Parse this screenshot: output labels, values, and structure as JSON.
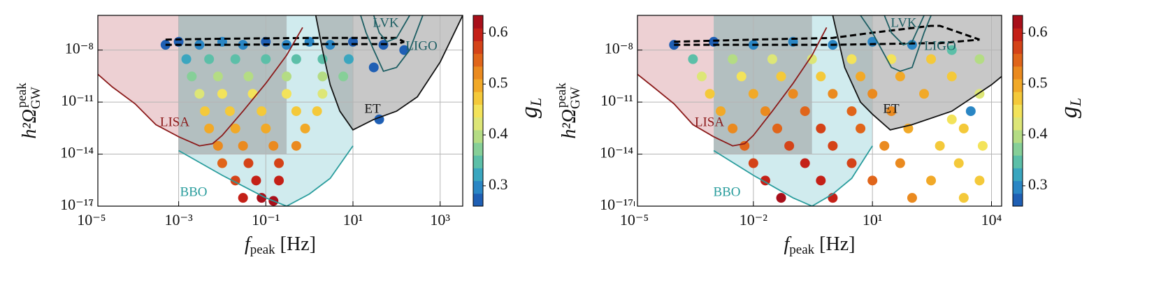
{
  "chart_data": [
    {
      "type": "scatter",
      "xlabel": {
        "base": "f",
        "sub": "peak",
        "rest": " [Hz]"
      },
      "ylabel": {
        "base": "h²Ω",
        "sub": "GW",
        "sup": "peak"
      },
      "xscale": "log",
      "yscale": "log",
      "grid": true,
      "xlim": [
        1.4e-05,
        3300
      ],
      "ylim": [
        1e-17,
        1e-06
      ],
      "xticks": [
        {
          "value": 1e-05,
          "label": "10⁻⁵"
        },
        {
          "value": 0.001,
          "label": "10⁻³"
        },
        {
          "value": 0.1,
          "label": "10⁻¹"
        },
        {
          "value": 10,
          "label": "10¹"
        },
        {
          "value": 1000,
          "label": "10³"
        }
      ],
      "yticks": [
        {
          "value": 1e-17,
          "label": "10⁻¹⁷"
        },
        {
          "value": 1e-14,
          "label": "10⁻¹⁴"
        },
        {
          "value": 1e-11,
          "label": "10⁻¹¹"
        },
        {
          "value": 1e-08,
          "label": "10⁻⁸"
        }
      ],
      "colorbar": {
        "label": {
          "base": "g",
          "sub": "L"
        },
        "lim": [
          0.26,
          0.635
        ],
        "ticks": [
          0.3,
          0.4,
          0.5,
          0.6
        ],
        "colors": [
          "#1f5fb4",
          "#2a86c4",
          "#3aa6bf",
          "#5cbfa8",
          "#86cf98",
          "#b4dc84",
          "#dde677",
          "#f3e35a",
          "#f4c93a",
          "#f1a928",
          "#ea8a1f",
          "#e0651a",
          "#d44318",
          "#c42017",
          "#a80f1a"
        ]
      },
      "regions": [
        {
          "color": "#dfa9ae",
          "x": [
            1.4e-05,
            0.001,
            0.001,
            0.0003,
            0.0001,
            3e-05,
            1.4e-05
          ],
          "y": [
            1e-06,
            1e-06,
            1e-13,
            5e-13,
            8e-12,
            7.5e-11,
            4e-10
          ]
        },
        {
          "color": "#a9dbe0",
          "x": [
            0.001,
            0.01,
            0.1,
            0.3,
            1,
            3,
            10,
            10,
            0.001
          ],
          "y": [
            1.6e-14,
            6e-16,
            3e-17,
            1e-17,
            5e-17,
            4e-16,
            3e-14,
            1e-06,
            1e-06
          ]
        },
        {
          "color": "#9a9a9a",
          "x": [
            0.001,
            0.3,
            0.3,
            0.001
          ],
          "y": [
            1e-06,
            1e-06,
            1e-14,
            1e-14
          ]
        },
        {
          "color": "#9a9a9a",
          "x": [
            1.4,
            2,
            3,
            5,
            10,
            30,
            100,
            300,
            1000,
            3300
          ],
          "y": [
            1e-06,
            1e-08,
            1e-10,
            3e-12,
            2.5e-13,
            1e-12,
            3e-12,
            2e-11,
            2e-09,
            1e-06
          ]
        }
      ],
      "curves": [
        {
          "name": "LISA",
          "color": "#8b1a1a",
          "x": [
            1.4e-05,
            3e-05,
            0.0001,
            0.0003,
            0.001,
            0.003,
            0.006,
            0.01,
            0.03,
            0.1,
            0.3,
            0.7
          ],
          "y": [
            4e-10,
            7.5e-11,
            8e-12,
            5e-13,
            1e-13,
            3e-14,
            4e-14,
            1.2e-13,
            3e-12,
            1.2e-10,
            5e-09,
            2e-07
          ]
        },
        {
          "name": "BBO",
          "color": "#2a9d9d",
          "x": [
            0.001,
            0.01,
            0.1,
            0.3,
            1,
            3,
            10
          ],
          "y": [
            1.6e-14,
            6e-16,
            3e-17,
            1e-17,
            5e-17,
            4e-16,
            3e-14
          ]
        },
        {
          "name": "ET",
          "color": "#111111",
          "x": [
            1.4,
            2,
            3,
            5,
            10,
            30,
            100,
            300,
            1000,
            3300
          ],
          "y": [
            1e-06,
            1e-08,
            1e-10,
            3e-12,
            2.5e-13,
            1e-12,
            3e-12,
            2e-11,
            2e-09,
            1e-06
          ]
        },
        {
          "name": "LIGO",
          "color": "#1d5e63",
          "x": [
            15,
            20,
            30,
            50,
            100,
            200,
            400
          ],
          "y": [
            1e-06,
            1e-07,
            1e-08,
            6e-10,
            1e-09,
            1e-08,
            1e-06
          ]
        },
        {
          "name": "LVK",
          "color": "#1d5e63",
          "x": [
            30,
            40,
            60,
            100,
            200
          ],
          "y": [
            1e-06,
            1e-07,
            3e-08,
            5e-08,
            1e-06
          ]
        }
      ],
      "band": {
        "x": [
          0.0005,
          0.01,
          1,
          100,
          150
        ],
        "upper": [
          4e-08,
          4.5e-08,
          5e-08,
          5e-08,
          3e-08
        ],
        "lower": [
          2e-08,
          2e-08,
          2.2e-08,
          2.2e-08,
          3e-08
        ]
      },
      "x": [
        0.0005,
        0.001,
        0.003,
        0.01,
        0.03,
        0.1,
        0.3,
        1,
        3,
        10,
        50,
        150,
        0.0015,
        0.005,
        0.02,
        0.1,
        0.5,
        2,
        8,
        0.002,
        0.008,
        0.04,
        0.3,
        2,
        6,
        0.003,
        0.01,
        0.05,
        0.3,
        2,
        0.004,
        0.015,
        0.08,
        0.5,
        1.5,
        0.005,
        0.02,
        0.1,
        0.8,
        0.008,
        0.03,
        0.15,
        0.5,
        0.01,
        0.04,
        0.2,
        0.02,
        0.06,
        0.2,
        0.03,
        0.08,
        0.15,
        30,
        40
      ],
      "values": [
        2e-08,
        3e-08,
        2e-08,
        3e-08,
        2e-08,
        3e-08,
        2e-08,
        3e-08,
        2e-08,
        3e-08,
        2e-08,
        1e-08,
        3e-09,
        3e-09,
        3e-09,
        3e-09,
        3e-09,
        3e-09,
        3e-09,
        3e-10,
        3e-10,
        3e-10,
        3e-10,
        3e-10,
        3e-10,
        3e-11,
        3e-11,
        3e-11,
        3e-11,
        3e-11,
        3e-12,
        3e-12,
        3e-12,
        3e-12,
        3e-12,
        3e-13,
        3e-13,
        3e-13,
        3e-13,
        3e-14,
        3e-14,
        3e-14,
        3e-14,
        3e-15,
        3e-15,
        3e-15,
        3e-16,
        3e-16,
        3e-16,
        3e-17,
        3e-17,
        2e-17,
        1e-09,
        1e-12
      ],
      "colorvalues": [
        0.27,
        0.28,
        0.3,
        0.29,
        0.3,
        0.28,
        0.3,
        0.29,
        0.3,
        0.28,
        0.27,
        0.27,
        0.33,
        0.34,
        0.35,
        0.34,
        0.35,
        0.34,
        0.33,
        0.38,
        0.4,
        0.41,
        0.4,
        0.39,
        0.38,
        0.43,
        0.44,
        0.45,
        0.44,
        0.43,
        0.46,
        0.47,
        0.47,
        0.46,
        0.46,
        0.49,
        0.5,
        0.5,
        0.49,
        0.52,
        0.53,
        0.53,
        0.52,
        0.55,
        0.56,
        0.56,
        0.58,
        0.59,
        0.59,
        0.61,
        0.62,
        0.62,
        0.27,
        0.27
      ]
    },
    {
      "type": "scatter",
      "xlabel": {
        "base": "f",
        "sub": "peak",
        "rest": " [Hz]"
      },
      "ylabel": {
        "base": "h²Ω",
        "sub": "GW",
        "sup": "peak"
      },
      "xscale": "log",
      "yscale": "log",
      "grid": true,
      "xlim": [
        1.2e-05,
        18000
      ],
      "ylim": [
        1e-17,
        1e-06
      ],
      "xticks": [
        {
          "value": 1e-05,
          "label": "10⁻⁵"
        },
        {
          "value": 0.01,
          "label": "10⁻²"
        },
        {
          "value": 10,
          "label": "10¹"
        },
        {
          "value": 10000,
          "label": "10⁴"
        }
      ],
      "yticks": [
        {
          "value": 1e-17,
          "label": "10⁻¹⁷"
        },
        {
          "value": 1e-14,
          "label": "10⁻¹⁴"
        },
        {
          "value": 1e-11,
          "label": "10⁻¹¹"
        },
        {
          "value": 1e-08,
          "label": "10⁻⁸"
        }
      ],
      "colorbar": {
        "label": {
          "base": "g",
          "sub": "L"
        },
        "lim": [
          0.26,
          0.635
        ],
        "ticks": [
          0.3,
          0.4,
          0.5,
          0.6
        ],
        "colors": [
          "#1f5fb4",
          "#2a86c4",
          "#3aa6bf",
          "#5cbfa8",
          "#86cf98",
          "#b4dc84",
          "#dde677",
          "#f3e35a",
          "#f4c93a",
          "#f1a928",
          "#ea8a1f",
          "#e0651a",
          "#d44318",
          "#c42017",
          "#a80f1a"
        ]
      },
      "regions": [
        {
          "color": "#dfa9ae",
          "x": [
            1.2e-05,
            0.001,
            0.001,
            0.0003,
            0.0001,
            3e-05,
            1.2e-05
          ],
          "y": [
            1e-06,
            1e-06,
            1e-13,
            5e-13,
            8e-12,
            7.5e-11,
            4e-10
          ]
        },
        {
          "color": "#a9dbe0",
          "x": [
            0.001,
            0.01,
            0.1,
            0.3,
            1,
            3,
            10,
            10,
            0.001
          ],
          "y": [
            1.6e-14,
            6e-16,
            3e-17,
            1e-17,
            5e-17,
            4e-16,
            3e-14,
            1e-06,
            1e-06
          ]
        },
        {
          "color": "#9a9a9a",
          "x": [
            0.001,
            0.3,
            0.3,
            0.001
          ],
          "y": [
            1e-06,
            1e-06,
            1e-14,
            1e-14
          ]
        },
        {
          "color": "#9a9a9a",
          "x": [
            1,
            2,
            5,
            10,
            28,
            100,
            1000,
            10000,
            18000,
            18000
          ],
          "y": [
            1e-06,
            1e-09,
            1e-11,
            2e-12,
            2.5e-13,
            5e-13,
            3e-12,
            1e-10,
            3e-10,
            1e-06
          ]
        }
      ],
      "curves": [
        {
          "name": "LISA",
          "color": "#8b1a1a",
          "x": [
            1.2e-05,
            3e-05,
            0.0001,
            0.0003,
            0.001,
            0.003,
            0.006,
            0.01,
            0.03,
            0.1,
            0.3,
            0.7
          ],
          "y": [
            4e-10,
            7.5e-11,
            8e-12,
            5e-13,
            1e-13,
            3e-14,
            4e-14,
            1.2e-13,
            3e-12,
            1.2e-10,
            5e-09,
            2e-07
          ]
        },
        {
          "name": "BBO",
          "color": "#2a9d9d",
          "x": [
            0.001,
            0.01,
            0.1,
            0.3,
            1,
            3,
            10
          ],
          "y": [
            1.6e-14,
            6e-16,
            3e-17,
            1e-17,
            5e-17,
            4e-16,
            3e-14
          ]
        },
        {
          "name": "ET",
          "color": "#111111",
          "x": [
            1,
            2,
            5,
            10,
            28,
            100,
            1000,
            10000,
            18000
          ],
          "y": [
            1e-06,
            1e-09,
            1e-11,
            2e-12,
            2.5e-13,
            5e-13,
            3e-12,
            1e-10,
            3e-10
          ]
        },
        {
          "name": "LIGO",
          "color": "#1d5e63",
          "x": [
            5,
            10,
            30,
            50,
            100,
            200,
            300
          ],
          "y": [
            1e-06,
            1e-07,
            1e-09,
            6e-10,
            1e-09,
            1e-07,
            1e-06
          ]
        },
        {
          "name": "LVK",
          "color": "#1d5e63",
          "x": [
            20,
            30,
            60,
            100,
            200
          ],
          "y": [
            1e-06,
            1e-07,
            2e-08,
            3e-08,
            1e-06
          ]
        }
      ],
      "band": {
        "x": [
          0.0001,
          0.01,
          1,
          10,
          300,
          500,
          5000
        ],
        "upper": [
          3e-08,
          4e-08,
          5e-08,
          1e-07,
          2.5e-07,
          2.5e-07,
          4e-08
        ],
        "lower": [
          2e-08,
          2e-08,
          2e-08,
          2.2e-08,
          2.5e-08,
          2.5e-08,
          4e-08
        ]
      },
      "x": [
        0.0001,
        0.001,
        0.01,
        0.1,
        1,
        10,
        100,
        1000,
        5000,
        0.0003,
        0.003,
        0.03,
        0.3,
        3,
        30,
        300,
        0.0005,
        0.005,
        0.05,
        0.5,
        5,
        50,
        1000,
        0.0008,
        0.01,
        0.1,
        1,
        10,
        200,
        5000,
        0.0015,
        0.02,
        0.2,
        3,
        30,
        1000,
        3000,
        0.003,
        0.04,
        0.5,
        5,
        80,
        2000,
        0.006,
        0.08,
        1,
        20,
        500,
        6000,
        0.01,
        0.2,
        3,
        50,
        1500,
        0.02,
        0.5,
        10,
        300,
        5000,
        0.05,
        1,
        100,
        2000
      ],
      "values": [
        2e-08,
        3e-08,
        2e-08,
        3e-08,
        2e-08,
        3e-08,
        2e-08,
        1e-08,
        3e-09,
        3e-09,
        3e-09,
        3e-09,
        3e-09,
        3e-09,
        3e-09,
        3e-09,
        3e-10,
        3e-10,
        3e-10,
        3e-10,
        3e-10,
        3e-10,
        3e-10,
        3e-11,
        3e-11,
        3e-11,
        3e-11,
        3e-11,
        3e-11,
        3e-11,
        3e-12,
        3e-12,
        3e-12,
        3e-12,
        3e-12,
        1e-12,
        3e-12,
        3e-13,
        3e-13,
        3e-13,
        3e-13,
        3e-13,
        3e-13,
        3e-14,
        3e-14,
        3e-14,
        3e-14,
        3e-14,
        3e-14,
        3e-15,
        3e-15,
        3e-15,
        3e-15,
        3e-15,
        3e-16,
        3e-16,
        3e-16,
        3e-16,
        3e-16,
        3e-17,
        3e-17,
        3e-17,
        3e-17
      ],
      "colorvalues": [
        0.27,
        0.28,
        0.3,
        0.29,
        0.3,
        0.29,
        0.3,
        0.36,
        0.4,
        0.36,
        0.4,
        0.42,
        0.43,
        0.44,
        0.45,
        0.46,
        0.42,
        0.45,
        0.47,
        0.48,
        0.49,
        0.5,
        0.46,
        0.46,
        0.49,
        0.51,
        0.52,
        0.52,
        0.49,
        0.43,
        0.49,
        0.52,
        0.54,
        0.54,
        0.53,
        0.45,
        0.3,
        0.51,
        0.54,
        0.56,
        0.55,
        0.5,
        0.46,
        0.54,
        0.57,
        0.57,
        0.53,
        0.48,
        0.45,
        0.57,
        0.59,
        0.58,
        0.52,
        0.48,
        0.6,
        0.61,
        0.55,
        0.5,
        0.47,
        0.62,
        0.6,
        0.52,
        0.48
      ]
    }
  ]
}
